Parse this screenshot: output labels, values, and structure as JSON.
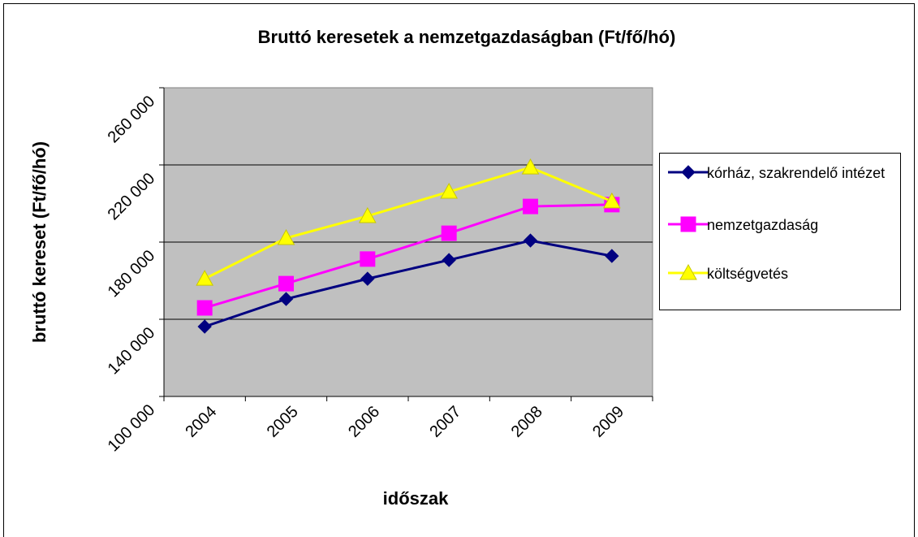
{
  "chart_data": {
    "type": "line",
    "title": "Bruttó keresetek a nemzetgazdaságban (Ft/fő/hó)",
    "x_label": "időszak",
    "y_label": "bruttó kereset (Ft/fő/hó)",
    "categories": [
      "2004",
      "2005",
      "2006",
      "2007",
      "2008",
      "2009"
    ],
    "series": [
      {
        "name": "kórház, szakrendelő intézet",
        "color": "#000080",
        "marker": "diamond",
        "values": [
          136200,
          150500,
          161000,
          170700,
          180800,
          172800
        ]
      },
      {
        "name": "nemzetgazdaság",
        "color": "#ff00ff",
        "marker": "square",
        "values": [
          145900,
          158500,
          171200,
          184600,
          198500,
          199400
        ]
      },
      {
        "name": "költségvetés",
        "color": "#ffff00",
        "marker": "triangle",
        "values": [
          161000,
          182100,
          193500,
          206100,
          218700,
          201100
        ]
      }
    ],
    "ylim": [
      100000,
      260000
    ],
    "yticks": [
      {
        "value": 100000,
        "label": "100 000"
      },
      {
        "value": 140000,
        "label": "140 000"
      },
      {
        "value": 180000,
        "label": "180 000"
      },
      {
        "value": 220000,
        "label": "220 000"
      },
      {
        "value": 260000,
        "label": "260 000"
      }
    ],
    "grid": true,
    "plot_background": "#c0c0c0",
    "legend": "right"
  }
}
